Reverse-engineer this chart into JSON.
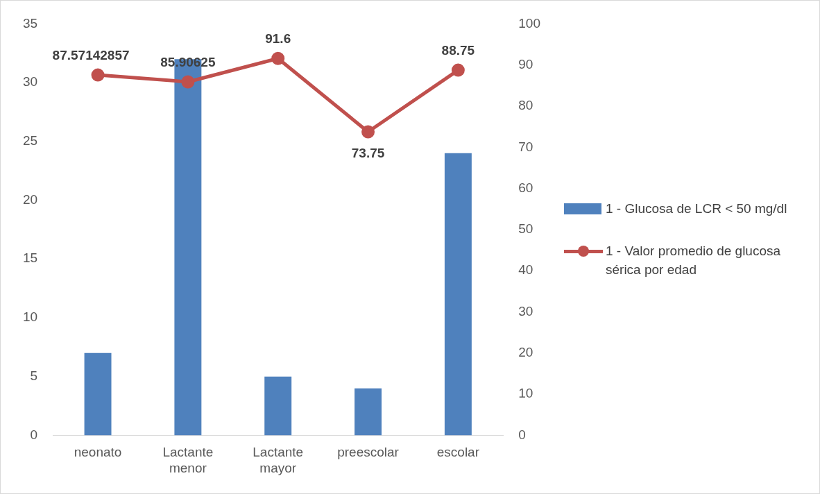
{
  "chart_data": {
    "type": "bar",
    "categories": [
      "neonato",
      "Lactante menor",
      "Lactante mayor",
      "preescolar",
      "escolar"
    ],
    "series": [
      {
        "name": "1 - Glucosa de LCR < 50 mg/dl",
        "color": "#4f81bd",
        "values": [
          7,
          32,
          5,
          4,
          24
        ]
      },
      {
        "name": "1 - Valor promedio de glucosa sérica por edad",
        "type": "line",
        "axis": "y2",
        "color": "#c0504d",
        "values": [
          87.57142857,
          85.90625,
          91.6,
          73.75,
          88.75
        ],
        "value_labels": [
          "87.57142857",
          "85.90625",
          "91.6",
          "73.75",
          "88.75"
        ]
      }
    ],
    "ylim": [
      0,
      35
    ],
    "yticks": [
      0,
      5,
      10,
      15,
      20,
      25,
      30,
      35
    ],
    "y2lim": [
      0,
      100
    ],
    "y2ticks": [
      0,
      10,
      20,
      30,
      40,
      50,
      60,
      70,
      80,
      90,
      100
    ],
    "grid": false,
    "legend": "right",
    "marker": "circle",
    "line_style": "solid"
  }
}
